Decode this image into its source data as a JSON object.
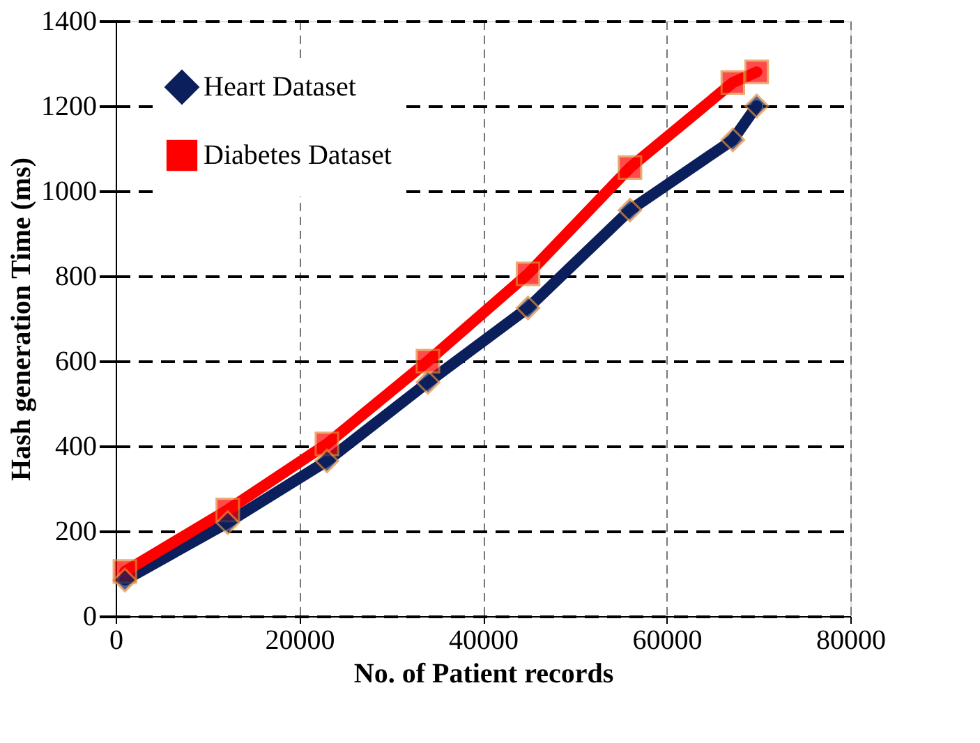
{
  "chart_data": {
    "type": "line",
    "xlabel": "No. of Patient records",
    "ylabel": "Hash generation Time (ms)",
    "x": [
      1000,
      12200,
      23000,
      34000,
      44900,
      56000,
      67200,
      69800
    ],
    "series": [
      {
        "name": "Heart Dataset",
        "color": "#0b1f5c",
        "marker": "diamond",
        "values": [
          85,
          220,
          365,
          550,
          725,
          955,
          1120,
          1200
        ]
      },
      {
        "name": "Diabetes Dataset",
        "color": "#ff0000",
        "marker": "square",
        "values": [
          105,
          250,
          405,
          600,
          805,
          1055,
          1255,
          1280
        ]
      }
    ],
    "xlim": [
      0,
      80000
    ],
    "xticks": [
      0,
      20000,
      40000,
      60000,
      80000
    ],
    "ylim": [
      0,
      1400
    ],
    "yticks": [
      0,
      200,
      400,
      600,
      800,
      1000,
      1200,
      1400
    ],
    "grid": true,
    "legend": "top left",
    "line_style": "solid"
  }
}
